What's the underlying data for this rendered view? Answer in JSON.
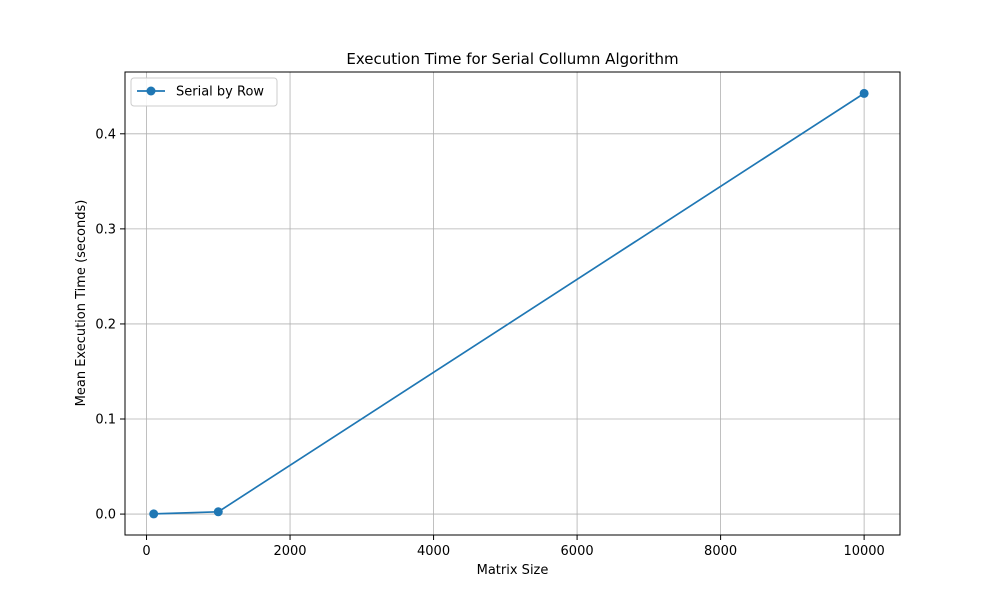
{
  "chart_data": {
    "type": "line",
    "title": "Execution Time for Serial Collumn Algorithm",
    "xlabel": "Matrix Size",
    "ylabel": "Mean Execution Time (seconds)",
    "xlim": [
      -300,
      10500
    ],
    "ylim": [
      -0.022,
      0.465
    ],
    "x_ticks": [
      0,
      2000,
      4000,
      6000,
      8000,
      10000
    ],
    "y_ticks": [
      0.0,
      0.1,
      0.2,
      0.3,
      0.4
    ],
    "x_tick_labels": [
      "0",
      "2000",
      "4000",
      "6000",
      "8000",
      "10000"
    ],
    "y_tick_labels": [
      "0.0",
      "0.1",
      "0.2",
      "0.3",
      "0.4"
    ],
    "grid": true,
    "legend_position": "top-left",
    "series": [
      {
        "name": "Serial by Row",
        "color": "#1f77b4",
        "marker": "circle",
        "x": [
          100,
          1000,
          10000
        ],
        "y": [
          0.0002,
          0.0024,
          0.4425
        ]
      }
    ]
  }
}
